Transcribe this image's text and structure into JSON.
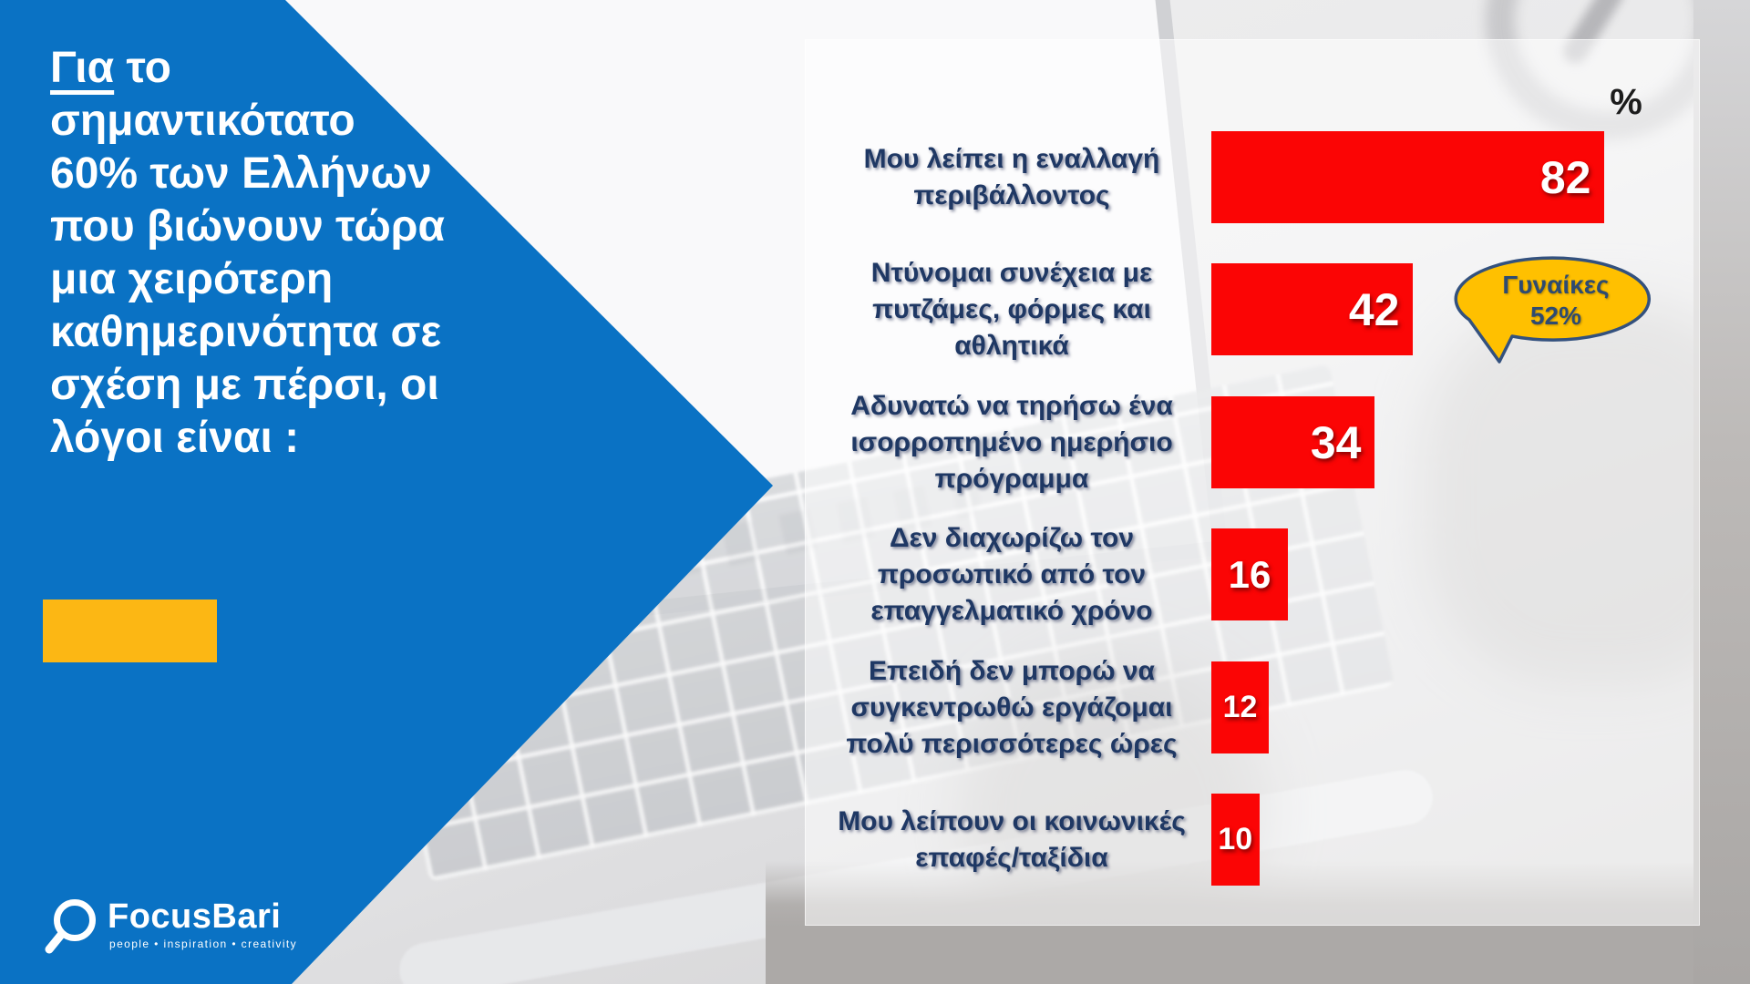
{
  "title": {
    "underlined_word": "Για",
    "first_line_rest": " το",
    "rest_lines_text": "σημαντικότατο\n60% των Ελλήνων\nπου βιώνουν τώρα\nμια χειρότερη\nκαθημερινότητα σε\nσχέση με πέρσι, οι\nλόγοι είναι :"
  },
  "logo": {
    "brand": "FocusBari",
    "tagline": "people • inspiration • creativity"
  },
  "chart_data": {
    "type": "bar",
    "orientation": "horizontal",
    "title": "",
    "unit_label": "%",
    "categories": [
      "Μου λείπει η εναλλαγή περιβάλλοντος",
      "Ντύνομαι συνέχεια με πυτζάμες, φόρμες και αθλητικά",
      "Αδυνατώ να τηρήσω ένα ισορροπημένο ημερήσιο πρόγραμμα",
      "Δεν διαχωρίζω τον προσωπικό από τον επαγγελματικό χρόνο",
      "Επειδή δεν μπορώ να συγκεντρωθώ εργάζομαι πολύ περισσότερες ώρες",
      "Μου λείπουν οι κοινωνικές επαφές/ταξίδια"
    ],
    "label_display": [
      "Μου λείπει η εναλλαγή\nπεριβάλλοντος",
      "Ντύνομαι συνέχεια με\nπυτζάμες, φόρμες και\nαθλητικά",
      "Αδυνατώ να τηρήσω ένα\nισορροπημένο ημερήσιο\nπρόγραμμα",
      "Δεν διαχωρίζω τον\nπροσωπικό από τον\nεπαγγελματικό χρόνο",
      "Επειδή δεν μπορώ να\nσυγκεντρωθώ εργάζομαι\nπολύ περισσότερες ώρες",
      "Μου λείπουν οι κοινωνικές\nεπαφές/ταξίδια"
    ],
    "values": [
      82,
      42,
      34,
      16,
      12,
      10
    ],
    "xlim": [
      0,
      100
    ],
    "grid": false,
    "legend": null,
    "bar_color": "#fb0505",
    "label_color": "#1f3864",
    "annotation": {
      "line1": "Γυναίκες",
      "line2": "52%",
      "attached_to_category": "Ντύνομαι συνέχεια με πυτζάμες, φόρμες και αθλητικά",
      "bubble_fill": "#ffc000",
      "bubble_border": "#33517e"
    }
  },
  "colors": {
    "arrow_blue": "#0a72c4",
    "accent_gold": "#fcb714",
    "panel_overlay": "rgba(255,255,255,0.55)"
  }
}
